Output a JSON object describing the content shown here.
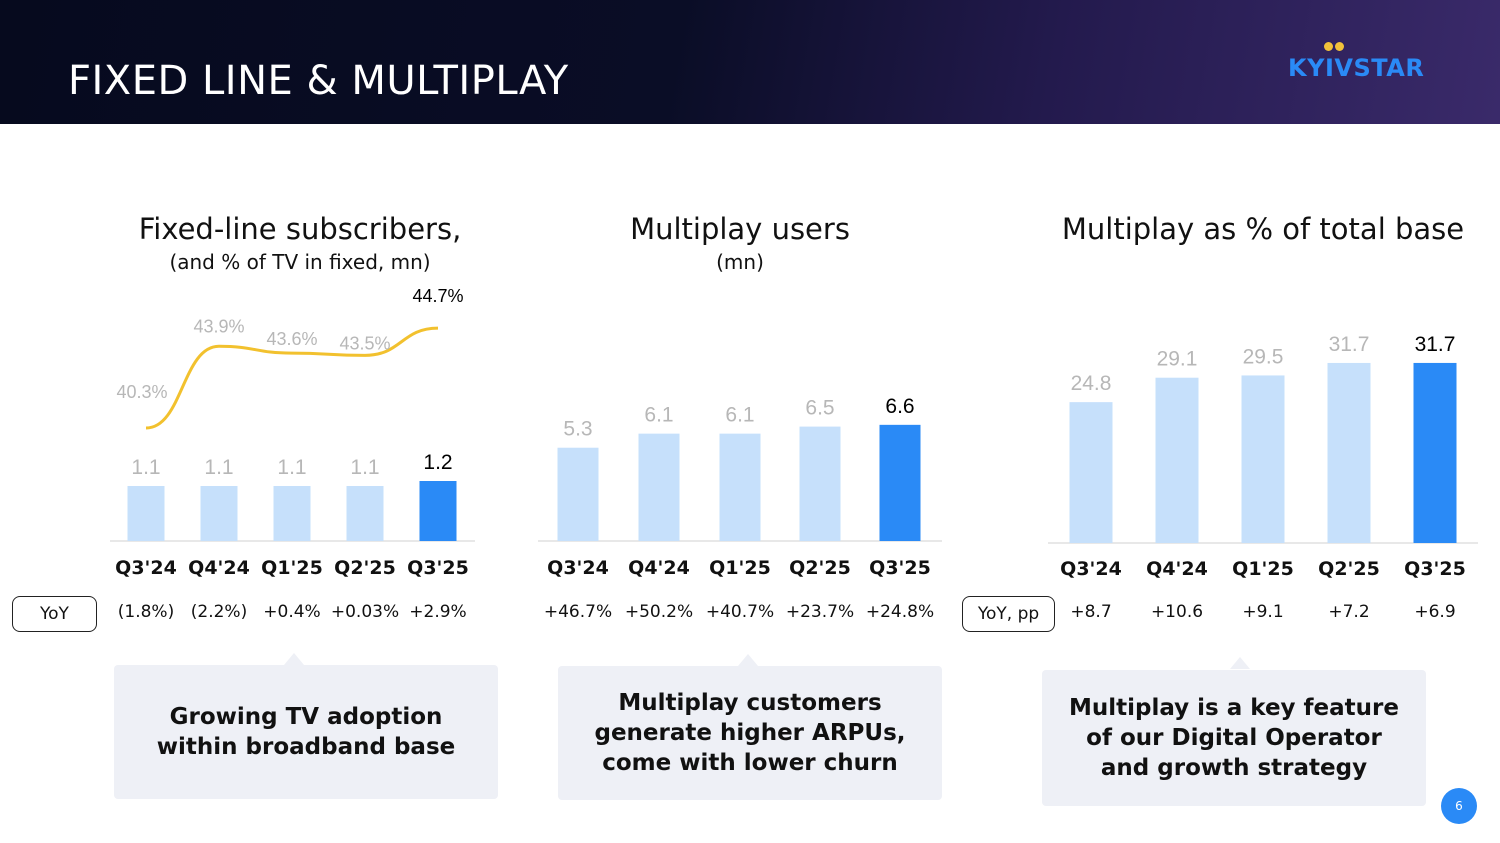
{
  "header": {
    "title": "FIXED LINE & MULTIPLAY",
    "logo_text": "KYIVSTAR"
  },
  "colors": {
    "bar_light": "#c6e0fb",
    "bar_highlight": "#2a8af6",
    "line_tv": "#f2c12e",
    "label_muted": "#b7b7b7",
    "label_strong": "#000000"
  },
  "charts": [
    {
      "title": "Fixed-line subscribers,",
      "subtitle": "(and % of TV in fixed, mn)"
    },
    {
      "title": "Multiplay users",
      "subtitle": "(mn)"
    },
    {
      "title": "Multiplay as % of total base",
      "subtitle": ""
    }
  ],
  "chart_data": [
    {
      "type": "bar",
      "title": "Fixed-line subscribers,",
      "subtitle": "(and % of TV in fixed, mn)",
      "categories": [
        "Q3'24",
        "Q4'24",
        "Q1'25",
        "Q2'25",
        "Q3'25"
      ],
      "values": [
        1.1,
        1.1,
        1.1,
        1.1,
        1.2
      ],
      "value_labels": [
        "1.1",
        "1.1",
        "1.1",
        "1.1",
        "1.2"
      ],
      "highlight_index": 4,
      "line_series": {
        "type": "line",
        "values": [
          40.3,
          43.9,
          43.6,
          43.5,
          44.7
        ],
        "labels": [
          "40.3%",
          "43.9%",
          "43.6%",
          "43.5%",
          "44.7%"
        ]
      },
      "yoy": {
        "label": "YoY",
        "values": [
          "(1.8%)",
          "(2.2%)",
          "+0.4%",
          "+0.03%",
          "+2.9%"
        ]
      }
    },
    {
      "type": "bar",
      "title": "Multiplay users",
      "subtitle": "(mn)",
      "categories": [
        "Q3'24",
        "Q4'24",
        "Q1'25",
        "Q2'25",
        "Q3'25"
      ],
      "values": [
        5.3,
        6.1,
        6.1,
        6.5,
        6.6
      ],
      "value_labels": [
        "5.3",
        "6.1",
        "6.1",
        "6.5",
        "6.6"
      ],
      "highlight_index": 4,
      "yoy": {
        "label": "",
        "values": [
          "+46.7%",
          "+50.2%",
          "+40.7%",
          "+23.7%",
          "+24.8%"
        ]
      }
    },
    {
      "type": "bar",
      "title": "Multiplay as % of total base",
      "categories": [
        "Q3'24",
        "Q4'24",
        "Q1'25",
        "Q2'25",
        "Q3'25"
      ],
      "values": [
        24.8,
        29.1,
        29.5,
        31.7,
        31.7
      ],
      "value_labels": [
        "24.8",
        "29.1",
        "29.5",
        "31.7",
        "31.7"
      ],
      "highlight_index": 4,
      "yoy": {
        "label": "YoY, pp",
        "values": [
          "+8.7",
          "+10.6",
          "+9.1",
          "+7.2",
          "+6.9"
        ]
      }
    }
  ],
  "callouts": [
    "Growing TV adoption\nwithin broadband base",
    "Multiplay customers\ngenerate higher ARPUs,\ncome with lower churn",
    "Multiplay is a key feature\nof our Digital Operator\nand growth strategy"
  ],
  "footer": {
    "page_number": "6"
  }
}
